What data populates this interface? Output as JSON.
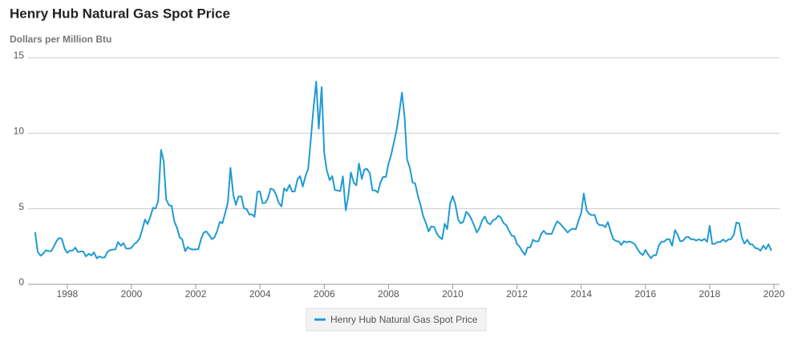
{
  "chart_data": {
    "type": "line",
    "title": "Henry Hub Natural Gas Spot Price",
    "subtitle": "Dollars per Million Btu",
    "xlim": [
      1996.78,
      2020
    ],
    "xticks": [
      1998,
      2000,
      2002,
      2004,
      2006,
      2008,
      2010,
      2012,
      2014,
      2016,
      2018,
      2020
    ],
    "ylim": [
      0,
      15
    ],
    "yticks": [
      0,
      5,
      10,
      15
    ],
    "grid": true,
    "legend": "bottom",
    "x": [
      1997,
      1997.08,
      1997.17,
      1997.25,
      1997.33,
      1997.42,
      1997.5,
      1997.58,
      1997.67,
      1997.75,
      1997.83,
      1997.92,
      1998,
      1998.08,
      1998.17,
      1998.25,
      1998.33,
      1998.42,
      1998.5,
      1998.58,
      1998.67,
      1998.75,
      1998.83,
      1998.92,
      1999,
      1999.08,
      1999.17,
      1999.25,
      1999.33,
      1999.42,
      1999.5,
      1999.58,
      1999.67,
      1999.75,
      1999.83,
      1999.92,
      2000,
      2000.08,
      2000.17,
      2000.25,
      2000.33,
      2000.42,
      2000.5,
      2000.58,
      2000.67,
      2000.75,
      2000.83,
      2000.92,
      2001,
      2001.08,
      2001.17,
      2001.25,
      2001.33,
      2001.42,
      2001.5,
      2001.58,
      2001.67,
      2001.75,
      2001.83,
      2001.92,
      2002,
      2002.08,
      2002.17,
      2002.25,
      2002.33,
      2002.42,
      2002.5,
      2002.58,
      2002.67,
      2002.75,
      2002.83,
      2002.92,
      2003,
      2003.08,
      2003.17,
      2003.25,
      2003.33,
      2003.42,
      2003.5,
      2003.58,
      2003.67,
      2003.75,
      2003.83,
      2003.92,
      2004,
      2004.08,
      2004.17,
      2004.25,
      2004.33,
      2004.42,
      2004.5,
      2004.58,
      2004.67,
      2004.75,
      2004.83,
      2004.92,
      2005,
      2005.08,
      2005.17,
      2005.25,
      2005.33,
      2005.42,
      2005.5,
      2005.58,
      2005.67,
      2005.75,
      2005.83,
      2005.92,
      2006,
      2006.08,
      2006.17,
      2006.25,
      2006.33,
      2006.42,
      2006.5,
      2006.58,
      2006.67,
      2006.75,
      2006.83,
      2006.92,
      2007,
      2007.08,
      2007.17,
      2007.25,
      2007.33,
      2007.42,
      2007.5,
      2007.58,
      2007.67,
      2007.75,
      2007.83,
      2007.92,
      2008,
      2008.08,
      2008.17,
      2008.25,
      2008.33,
      2008.42,
      2008.5,
      2008.58,
      2008.67,
      2008.75,
      2008.83,
      2008.92,
      2009,
      2009.08,
      2009.17,
      2009.25,
      2009.33,
      2009.42,
      2009.5,
      2009.58,
      2009.67,
      2009.75,
      2009.83,
      2009.92,
      2010,
      2010.08,
      2010.17,
      2010.25,
      2010.33,
      2010.42,
      2010.5,
      2010.58,
      2010.67,
      2010.75,
      2010.83,
      2010.92,
      2011,
      2011.08,
      2011.17,
      2011.25,
      2011.33,
      2011.42,
      2011.5,
      2011.58,
      2011.67,
      2011.75,
      2011.83,
      2011.92,
      2012,
      2012.08,
      2012.17,
      2012.25,
      2012.33,
      2012.42,
      2012.5,
      2012.58,
      2012.67,
      2012.75,
      2012.83,
      2012.92,
      2013,
      2013.08,
      2013.17,
      2013.25,
      2013.33,
      2013.42,
      2013.5,
      2013.58,
      2013.67,
      2013.75,
      2013.83,
      2013.92,
      2014,
      2014.08,
      2014.17,
      2014.25,
      2014.33,
      2014.42,
      2014.5,
      2014.58,
      2014.67,
      2014.75,
      2014.83,
      2014.92,
      2015,
      2015.08,
      2015.17,
      2015.25,
      2015.33,
      2015.42,
      2015.5,
      2015.58,
      2015.67,
      2015.75,
      2015.83,
      2015.92,
      2016,
      2016.08,
      2016.17,
      2016.25,
      2016.33,
      2016.42,
      2016.5,
      2016.58,
      2016.67,
      2016.75,
      2016.83,
      2016.92,
      2017,
      2017.08,
      2017.17,
      2017.25,
      2017.33,
      2017.42,
      2017.5,
      2017.58,
      2017.67,
      2017.75,
      2017.83,
      2017.92,
      2018,
      2018.08,
      2018.17,
      2018.25,
      2018.33,
      2018.42,
      2018.5,
      2018.58,
      2018.67,
      2018.75,
      2018.83,
      2018.92,
      2019,
      2019.08,
      2019.17,
      2019.25,
      2019.33,
      2019.42,
      2019.5,
      2019.58,
      2019.67,
      2019.75,
      2019.83,
      2019.92
    ],
    "series": [
      {
        "name": "Henry Hub Natural Gas Spot Price",
        "color": "#1f9bd1",
        "values": [
          3.45,
          2.15,
          1.89,
          2.03,
          2.25,
          2.2,
          2.19,
          2.49,
          2.88,
          3.07,
          3.01,
          2.35,
          2.09,
          2.23,
          2.24,
          2.43,
          2.14,
          2.17,
          2.17,
          1.85,
          2.02,
          1.91,
          2.12,
          1.72,
          1.85,
          1.77,
          1.79,
          2.15,
          2.26,
          2.3,
          2.31,
          2.8,
          2.55,
          2.73,
          2.37,
          2.36,
          2.42,
          2.66,
          2.79,
          3.04,
          3.59,
          4.29,
          3.99,
          4.43,
          5.06,
          5.02,
          5.52,
          8.9,
          8.17,
          5.61,
          5.23,
          5.19,
          4.19,
          3.72,
          3.11,
          2.97,
          2.19,
          2.46,
          2.34,
          2.3,
          2.32,
          2.32,
          3.03,
          3.43,
          3.5,
          3.26,
          2.99,
          3.09,
          3.55,
          4.13,
          4.04,
          4.74,
          5.43,
          7.71,
          5.93,
          5.26,
          5.81,
          5.82,
          5.03,
          4.99,
          4.62,
          4.63,
          4.47,
          6.13,
          6.14,
          5.37,
          5.39,
          5.71,
          6.33,
          6.27,
          5.93,
          5.41,
          5.15,
          6.35,
          6.17,
          6.58,
          6.15,
          6.14,
          6.96,
          7.16,
          6.47,
          7.18,
          7.63,
          9.53,
          11.75,
          13.42,
          10.3,
          13.05,
          8.69,
          7.54,
          6.89,
          7.16,
          6.25,
          6.21,
          6.17,
          7.14,
          4.9,
          5.85,
          7.41,
          6.73,
          6.55,
          8,
          6.98,
          7.6,
          7.64,
          7.35,
          6.22,
          6.22,
          6.08,
          6.74,
          7.1,
          7.11,
          7.99,
          8.54,
          9.41,
          10.18,
          11.27,
          12.69,
          11.09,
          8.26,
          7.67,
          6.74,
          6.68,
          5.82,
          5.24,
          4.52,
          4.04,
          3.5,
          3.83,
          3.8,
          3.38,
          3.14,
          2.99,
          4.01,
          3.66,
          5.35,
          5.83,
          5.32,
          4.29,
          4.03,
          4.14,
          4.8,
          4.63,
          4.32,
          3.89,
          3.43,
          3.71,
          4.25,
          4.49,
          4.09,
          3.97,
          4.24,
          4.31,
          4.54,
          4.42,
          4.06,
          3.9,
          3.57,
          3.24,
          3.17,
          2.67,
          2.5,
          2.17,
          1.95,
          2.43,
          2.46,
          2.95,
          2.84,
          2.85,
          3.32,
          3.54,
          3.34,
          3.33,
          3.33,
          3.81,
          4.17,
          4.04,
          3.83,
          3.62,
          3.43,
          3.62,
          3.68,
          3.64,
          4.24,
          4.71,
          6,
          4.9,
          4.66,
          4.58,
          4.59,
          4.05,
          3.91,
          3.92,
          3.78,
          4.12,
          3.48,
          2.99,
          2.87,
          2.83,
          2.61,
          2.85,
          2.78,
          2.84,
          2.77,
          2.66,
          2.34,
          2.09,
          1.93,
          2.28,
          1.99,
          1.73,
          1.92,
          1.92,
          2.59,
          2.82,
          2.82,
          2.99,
          2.98,
          2.55,
          3.59,
          3.3,
          2.85,
          2.88,
          3.1,
          3.15,
          2.98,
          2.98,
          2.9,
          2.98,
          2.88,
          3.01,
          2.82,
          3.87,
          2.67,
          2.69,
          2.8,
          2.8,
          2.97,
          2.83,
          2.96,
          3,
          3.28,
          4.09,
          4.04,
          3.11,
          2.69,
          2.95,
          2.65,
          2.64,
          2.4,
          2.37,
          2.22,
          2.56,
          2.33,
          2.65,
          2.22
        ]
      }
    ]
  }
}
